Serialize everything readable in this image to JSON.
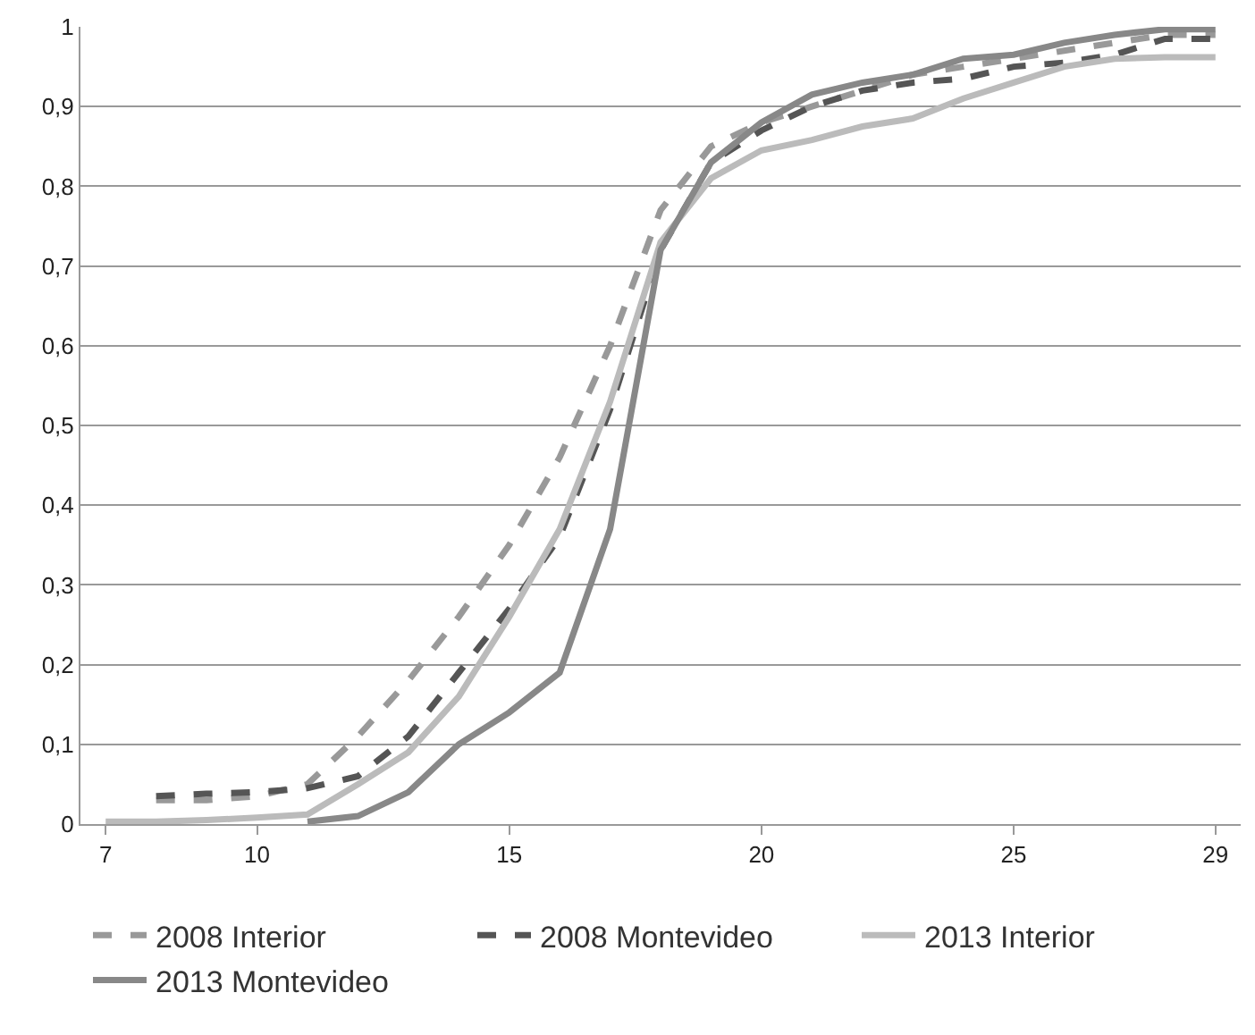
{
  "chart_data": {
    "type": "line",
    "x": [
      7,
      8,
      9,
      10,
      11,
      12,
      13,
      14,
      15,
      16,
      17,
      18,
      19,
      20,
      21,
      22,
      23,
      24,
      25,
      26,
      27,
      28,
      29
    ],
    "series": [
      {
        "name": "2008 Interior",
        "color": "#999999",
        "line_style": "dashed",
        "values": [
          null,
          0.03,
          0.03,
          0.035,
          0.05,
          0.11,
          0.18,
          0.26,
          0.35,
          0.46,
          0.6,
          0.77,
          0.85,
          0.88,
          0.9,
          0.92,
          0.94,
          0.95,
          0.96,
          0.97,
          0.98,
          0.99,
          0.99
        ]
      },
      {
        "name": "2008 Montevideo",
        "color": "#555555",
        "line_style": "dashed",
        "values": [
          null,
          0.035,
          0.038,
          0.04,
          0.045,
          0.06,
          0.11,
          0.19,
          0.27,
          0.36,
          0.52,
          0.72,
          0.83,
          0.87,
          0.9,
          0.92,
          0.93,
          0.935,
          0.95,
          0.955,
          0.965,
          0.985,
          0.985
        ]
      },
      {
        "name": "2013 Interior",
        "color": "#bbbbbb",
        "line_style": "solid",
        "values": [
          0.003,
          0.003,
          0.005,
          0.008,
          0.012,
          0.05,
          0.09,
          0.16,
          0.26,
          0.37,
          0.53,
          0.73,
          0.81,
          0.845,
          0.858,
          0.875,
          0.885,
          0.91,
          0.93,
          0.95,
          0.96,
          0.962,
          0.962
        ]
      },
      {
        "name": "2013 Montevideo",
        "color": "#888888",
        "line_style": "solid",
        "values": [
          null,
          null,
          null,
          null,
          0.003,
          0.01,
          0.04,
          0.1,
          0.14,
          0.19,
          0.37,
          0.72,
          0.83,
          0.88,
          0.915,
          0.93,
          0.94,
          0.96,
          0.965,
          0.98,
          0.99,
          0.997,
          0.997
        ]
      }
    ],
    "xlim": [
      6.5,
      29.5
    ],
    "xticks": [
      7,
      10,
      15,
      20,
      25,
      29
    ],
    "ylim": [
      0,
      1
    ],
    "yticks": [
      0,
      {
        "value": 0.1,
        "label": "0,1"
      },
      {
        "value": 0.2,
        "label": "0,2"
      },
      {
        "value": 0.3,
        "label": "0,3"
      },
      {
        "value": 0.4,
        "label": "0,4"
      },
      {
        "value": 0.5,
        "label": "0,5"
      },
      {
        "value": 0.6,
        "label": "0,6"
      },
      {
        "value": 0.7,
        "label": "0,7"
      },
      {
        "value": 0.8,
        "label": "0,8"
      },
      {
        "value": 0.9,
        "label": "0,9"
      },
      1
    ],
    "grid": "y",
    "legend": "bottom",
    "marker": "none"
  }
}
